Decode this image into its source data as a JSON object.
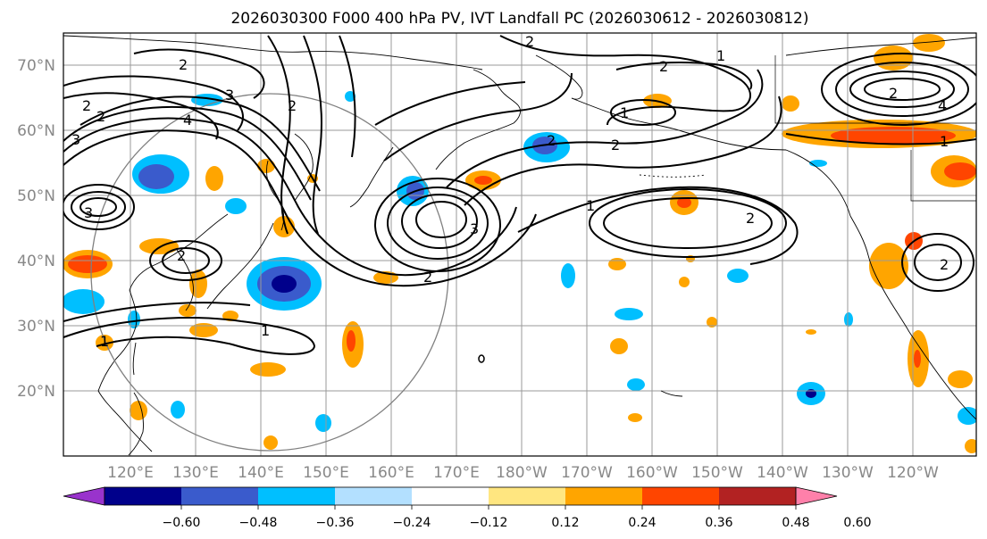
{
  "title": "2026030300 F000 400 hPa PV, IVT Landfall PC (2026030612 - 2026030812)",
  "lat_labels": [
    "70°N",
    "60°N",
    "50°N",
    "40°N",
    "30°N",
    "20°N"
  ],
  "lon_labels": [
    "120°E",
    "130°E",
    "140°E",
    "150°E",
    "160°E",
    "170°E",
    "180°W",
    "170°W",
    "160°W",
    "150°W",
    "140°W",
    "130°W",
    "120°W"
  ],
  "colorbar": {
    "colors": [
      "#9933cc",
      "#00008b",
      "#3a5bcc",
      "#00bfff",
      "#b3e0ff",
      "#ffffff",
      "#ffe680",
      "#ffa500",
      "#ff4500",
      "#b22222",
      "#ff80aa"
    ],
    "tick_labels": [
      "−0.60",
      "−0.48",
      "−0.36",
      "−0.24",
      "−0.12",
      "0.12",
      "0.24",
      "0.36",
      "0.48",
      "0.60"
    ]
  },
  "contour_labels": [
    "2",
    "2",
    "2",
    "3",
    "4",
    "3",
    "3",
    "2",
    "2",
    "1",
    "1",
    "2",
    "2",
    "1",
    "2",
    "3",
    "2",
    "1",
    "2",
    "2",
    "1",
    "2",
    "4",
    "1",
    "2"
  ],
  "colors": {
    "land": "#000000",
    "grid": "#9a9a9a",
    "range_circle": "#808080",
    "frame": "#000000"
  }
}
